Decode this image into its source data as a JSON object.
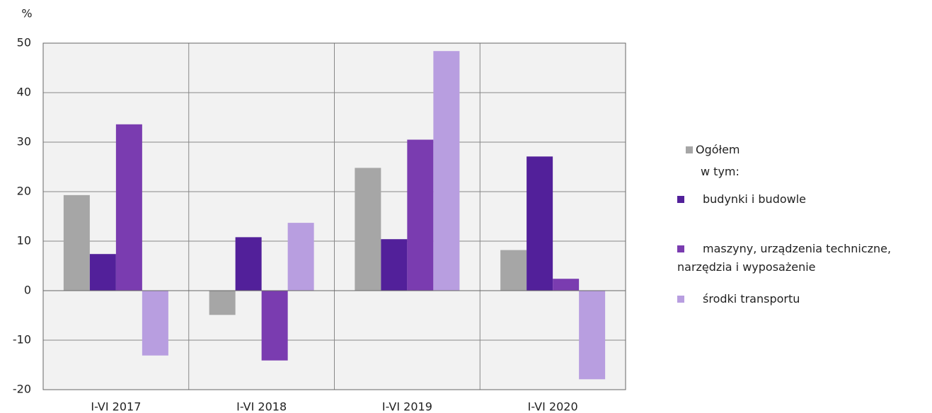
{
  "chart_data": {
    "type": "bar",
    "y_label": "%",
    "categories": [
      "I-VI 2017",
      "I-VI 2018",
      "I-VI 2019",
      "I-VI 2020"
    ],
    "series": [
      {
        "name": "Ogółem",
        "color": "#a6a6a6",
        "values": [
          19.3,
          -4.9,
          24.8,
          8.2
        ]
      },
      {
        "name": "budynki i budowle",
        "color": "#52209a",
        "values": [
          7.4,
          10.8,
          10.4,
          27.1
        ]
      },
      {
        "name": "maszyny, urządzenia techniczne, narzędzia i wyposażenie",
        "color": "#7a3cb0",
        "values": [
          33.6,
          -14.1,
          30.5,
          2.4
        ]
      },
      {
        "name": "środki transportu",
        "color": "#b89ee0",
        "values": [
          -13.1,
          13.7,
          48.4,
          -17.9
        ]
      }
    ],
    "legend_note": "w tym:",
    "ylim": [
      -20,
      50
    ],
    "yticks": [
      -20,
      -10,
      0,
      10,
      20,
      30,
      40,
      50
    ],
    "grid": true
  }
}
